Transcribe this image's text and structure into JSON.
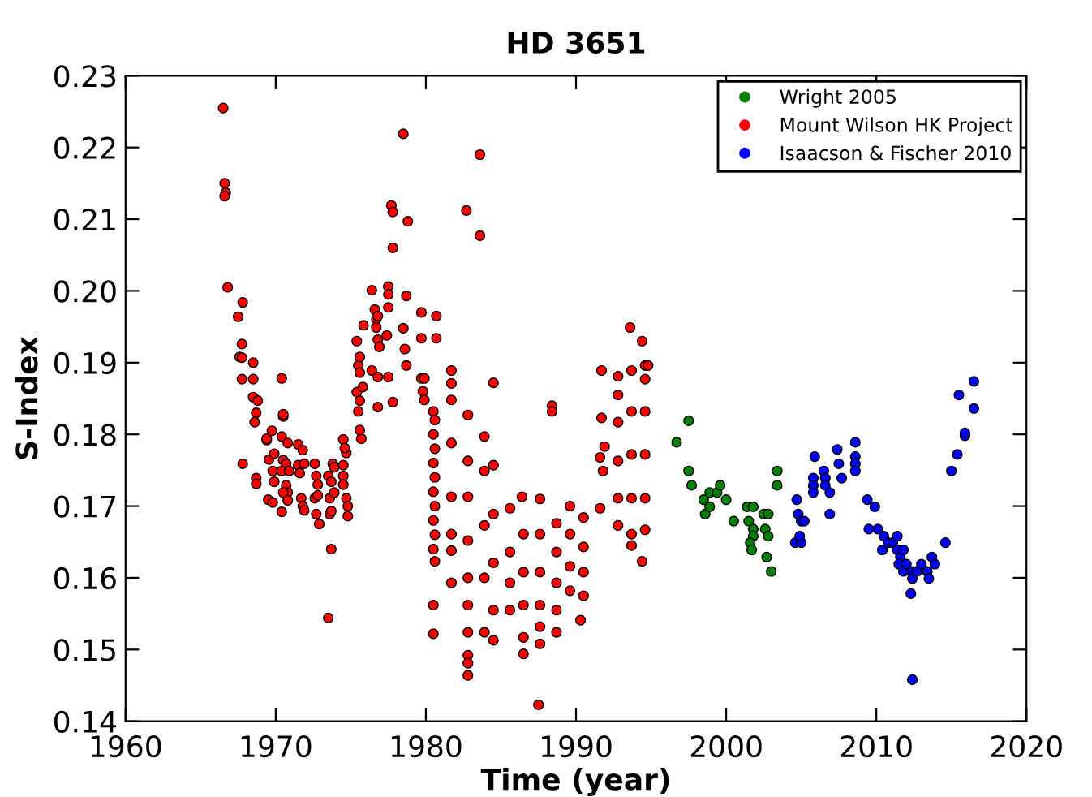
{
  "chart_data": {
    "type": "scatter",
    "title": "HD 3651",
    "xlabel": "Time (year)",
    "ylabel": "S-Index",
    "xlim": [
      1960,
      2020
    ],
    "xticks": [
      1960,
      1970,
      1980,
      1990,
      2000,
      2010,
      2020
    ],
    "ylim": [
      0.14,
      0.23
    ],
    "yticks": [
      0.14,
      0.15,
      0.16,
      0.17,
      0.18,
      0.19,
      {
        "value": 0.2,
        "label": "0.20"
      },
      0.21,
      0.22,
      0.23
    ],
    "grid": false,
    "legend": "top right",
    "marker": "circle",
    "series": [
      {
        "name": "Wright 2005",
        "color": "#008000",
        "x": [
          1996.7,
          1997.5,
          1997.5,
          1997.7,
          1998.5,
          1998.9,
          1999.4,
          1999.6,
          1998.6,
          1998.9,
          2000.0,
          2000.5,
          2001.4,
          2001.8,
          2001.5,
          2001.8,
          2001.8,
          2001.6,
          2001.7,
          2002.5,
          2002.8,
          2002.6,
          2002.8,
          2002.7,
          2003.0,
          2003.4,
          2003.4
        ],
        "values": [
          0.1789,
          0.1819,
          0.1749,
          0.1729,
          0.1709,
          0.1719,
          0.1719,
          0.1729,
          0.1689,
          0.1699,
          0.1709,
          0.1679,
          0.1699,
          0.1699,
          0.1679,
          0.1668,
          0.1658,
          0.1649,
          0.1639,
          0.1689,
          0.1689,
          0.1668,
          0.1658,
          0.1629,
          0.1609,
          0.1749,
          0.1729
        ]
      },
      {
        "name": "Mount Wilson HK Project",
        "color": "#ff0000",
        "x": [
          1966.5,
          1966.6,
          1966.67,
          1966.6,
          1966.8,
          1967.8,
          1967.5,
          1967.75,
          1967.6,
          1967.75,
          1968.5,
          1967.75,
          1968.5,
          1968.5,
          1968.8,
          1968.7,
          1968.6,
          1967.8,
          1968.7,
          1968.7,
          1969.4,
          1969.75,
          1969.4,
          1969.55,
          1969.9,
          1969.8,
          1969.9,
          1969.5,
          1969.8,
          1970.4,
          1970.5,
          1970.5,
          1970.4,
          1970.8,
          1970.5,
          1970.7,
          1970.4,
          1970.9,
          1970.7,
          1970.8,
          1970.4,
          1970.5,
          1970.8,
          1971.5,
          1971.8,
          1971.5,
          1971.9,
          1971.6,
          1971.7,
          1971.8,
          1971.9,
          1972.6,
          1972.7,
          1972.8,
          1972.6,
          1972.7,
          1972.9,
          1972.8,
          1973.5,
          1973.7,
          1973.6,
          1973.6,
          1973.7,
          1973.7,
          1973.5,
          1973.8,
          1973.9,
          1973.9,
          1974.5,
          1974.7,
          1974.5,
          1974.5,
          1974.7,
          1974.8,
          1974.8,
          1974.5,
          1974.6,
          1975.4,
          1975.5,
          1975.6,
          1975.6,
          1975.4,
          1975.6,
          1975.8,
          1975.5,
          1975.7,
          1975.6,
          1975.85,
          1976.4,
          1976.6,
          1976.7,
          1976.8,
          1976.7,
          1976.8,
          1976.9,
          1976.4,
          1976.8,
          1976.8,
          1977.5,
          1977.5,
          1977.5,
          1977.4,
          1977.5,
          1977.8,
          1977.8,
          1977.7,
          1977.8,
          1978.5,
          1978.8,
          1978.7,
          1978.5,
          1978.6,
          1978.7,
          1979.7,
          1979.7,
          1980.7,
          1980.7,
          1979.7,
          1979.9,
          1979.8,
          1979.9,
          1980.5,
          1980.6,
          1980.5,
          1980.6,
          1980.5,
          1980.6,
          1980.5,
          1980.6,
          1980.5,
          1980.6,
          1980.5,
          1980.6,
          1980.5,
          1980.5,
          1981.7,
          1981.7,
          1981.7,
          1981.7,
          1981.7,
          1981.7,
          1981.7,
          1981.7,
          1982.8,
          1982.8,
          1982.8,
          1982.8,
          1982.8,
          1982.8,
          1982.8,
          1982.8,
          1982.8,
          1982.8,
          1982.7,
          1983.6,
          1983.6,
          1983.9,
          1983.9,
          1983.9,
          1983.9,
          1983.9,
          1984.5,
          1984.5,
          1984.5,
          1984.5,
          1984.5,
          1984.5,
          1985.6,
          1985.6,
          1985.6,
          1985.6,
          1986.4,
          1986.5,
          1986.5,
          1986.5,
          1986.5,
          1986.5,
          1987.6,
          1987.6,
          1987.6,
          1987.6,
          1987.6,
          1987.6,
          1987.5,
          1988.4,
          1988.4,
          1988.7,
          1988.7,
          1988.7,
          1988.7,
          1988.7,
          1989.6,
          1989.6,
          1989.6,
          1989.6,
          1990.3,
          1990.5,
          1990.5,
          1990.5,
          1990.5,
          1991.6,
          1991.8,
          1991.7,
          1991.7,
          1991.6,
          1991.9,
          1992.8,
          1992.8,
          1992.8,
          1992.8,
          1992.8,
          1992.8,
          1993.6,
          1993.7,
          1993.7,
          1993.7,
          1993.7,
          1993.7,
          1993.7,
          1994.4,
          1994.4,
          1994.6,
          1994.6,
          1994.6,
          1994.6,
          1994.6,
          1994.8,
          1994.6
        ],
        "values": [
          0.2255,
          0.215,
          0.2137,
          0.2132,
          0.2005,
          0.1984,
          0.1964,
          0.1926,
          0.1908,
          0.1907,
          0.19,
          0.1877,
          0.1877,
          0.1852,
          0.1847,
          0.183,
          0.1817,
          0.1759,
          0.1739,
          0.1731,
          0.1792,
          0.1805,
          0.1794,
          0.1765,
          0.1773,
          0.1749,
          0.1734,
          0.1709,
          0.1705,
          0.1878,
          0.1825,
          0.1828,
          0.1797,
          0.1788,
          0.1764,
          0.1759,
          0.1749,
          0.1749,
          0.1729,
          0.1719,
          0.1692,
          0.1719,
          0.1708,
          0.1786,
          0.1778,
          0.1757,
          0.1759,
          0.1746,
          0.1711,
          0.17,
          0.1694,
          0.1759,
          0.1742,
          0.173,
          0.1711,
          0.1689,
          0.1675,
          0.1715,
          0.1742,
          0.1734,
          0.1711,
          0.1689,
          0.1693,
          0.164,
          0.1544,
          0.1759,
          0.1754,
          0.1719,
          0.1793,
          0.1774,
          0.1757,
          0.1742,
          0.1711,
          0.17,
          0.1686,
          0.173,
          0.1781,
          0.193,
          0.1896,
          0.1886,
          0.1908,
          0.1859,
          0.1847,
          0.1866,
          0.1832,
          0.1794,
          0.1806,
          0.1952,
          0.2001,
          0.1974,
          0.1961,
          0.1965,
          0.1949,
          0.1932,
          0.1922,
          0.1889,
          0.188,
          0.1838,
          0.2006,
          0.1995,
          0.1977,
          0.1938,
          0.188,
          0.1845,
          0.206,
          0.2119,
          0.211,
          0.2219,
          0.2097,
          0.1993,
          0.1948,
          0.1919,
          0.1896,
          0.197,
          0.1934,
          0.1965,
          0.1934,
          0.1878,
          0.1878,
          0.186,
          0.1848,
          0.1832,
          0.182,
          0.18,
          0.178,
          0.176,
          0.174,
          0.172,
          0.17,
          0.168,
          0.166,
          0.164,
          0.1623,
          0.1562,
          0.1522,
          0.1889,
          0.1871,
          0.1848,
          0.1788,
          0.1713,
          0.1661,
          0.1638,
          0.1593,
          0.1827,
          0.1763,
          0.1713,
          0.1652,
          0.16,
          0.1562,
          0.1524,
          0.1492,
          0.1481,
          0.1464,
          0.2112,
          0.219,
          0.2077,
          0.1797,
          0.1749,
          0.1673,
          0.16,
          0.1524,
          0.1872,
          0.1757,
          0.1689,
          0.1621,
          0.1555,
          0.1513,
          0.1697,
          0.1636,
          0.1593,
          0.1555,
          0.1713,
          0.1661,
          0.1608,
          0.1562,
          0.1517,
          0.1494,
          0.171,
          0.1661,
          0.1608,
          0.1562,
          0.1532,
          0.1508,
          0.1423,
          0.184,
          0.1832,
          0.1676,
          0.1636,
          0.1593,
          0.1555,
          0.1524,
          0.17,
          0.1661,
          0.1616,
          0.1582,
          0.1541,
          0.1684,
          0.1643,
          0.1608,
          0.1575,
          0.1697,
          0.1749,
          0.1889,
          0.1823,
          0.1768,
          0.1783,
          0.1881,
          0.1855,
          0.1817,
          0.1763,
          0.1711,
          0.1673,
          0.1949,
          0.1889,
          0.1832,
          0.1772,
          0.1711,
          0.1661,
          0.1645,
          0.193,
          0.1623,
          0.1896,
          0.1832,
          0.1772,
          0.1711,
          0.1667,
          0.1896,
          0.1877
        ]
      },
      {
        "name": "Isaacson & Fischer 2010",
        "color": "#0000ff",
        "x": [
          2004.7,
          2004.8,
          2005.0,
          2004.6,
          2005.0,
          2005.2,
          2004.9,
          2005.8,
          2005.8,
          2005.8,
          2005.9,
          2006.5,
          2006.6,
          2006.6,
          2006.9,
          2006.9,
          2007.4,
          2007.5,
          2007.7,
          2008.6,
          2008.6,
          2008.6,
          2008.6,
          2009.4,
          2009.9,
          2009.5,
          2010.1,
          2010.5,
          2010.4,
          2010.8,
          2011.1,
          2011.4,
          2011.4,
          2011.6,
          2011.8,
          2011.5,
          2011.8,
          2012.0,
          2012.4,
          2012.4,
          2012.7,
          2013.0,
          2012.3,
          2012.4,
          2013.4,
          2013.5,
          2013.7,
          2013.9,
          2014.6,
          2015.0,
          2015.4,
          2015.9,
          2015.9,
          2015.5,
          2016.5,
          2016.5
        ],
        "values": [
          0.1709,
          0.1689,
          0.1679,
          0.1649,
          0.1649,
          0.1679,
          0.1658,
          0.1739,
          0.1729,
          0.1719,
          0.1769,
          0.1749,
          0.1739,
          0.1729,
          0.1719,
          0.1689,
          0.1779,
          0.1759,
          0.1739,
          0.1789,
          0.1769,
          0.1759,
          0.1749,
          0.1709,
          0.1699,
          0.1668,
          0.1668,
          0.1658,
          0.1639,
          0.1649,
          0.1649,
          0.1658,
          0.1639,
          0.1629,
          0.1639,
          0.1619,
          0.1609,
          0.1619,
          0.1609,
          0.1599,
          0.1609,
          0.1619,
          0.1578,
          0.1458,
          0.1609,
          0.1599,
          0.1629,
          0.1619,
          0.1649,
          0.1749,
          0.1772,
          0.1798,
          0.1802,
          0.1855,
          0.1836,
          0.1874
        ]
      }
    ]
  }
}
